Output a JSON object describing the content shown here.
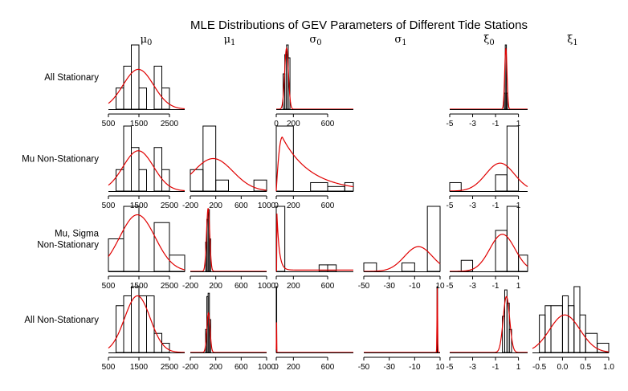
{
  "chart_data": {
    "type": "histogram-grid",
    "title": "MLE Distributions of GEV Parameters of Different Tide Stations",
    "columns": [
      {
        "name": "μ",
        "sub": "0"
      },
      {
        "name": "μ",
        "sub": "1"
      },
      {
        "name": "σ",
        "sub": "0"
      },
      {
        "name": "σ",
        "sub": "1"
      },
      {
        "name": "ξ",
        "sub": "0"
      },
      {
        "name": "ξ",
        "sub": "1"
      }
    ],
    "rows": [
      {
        "label_lines": [
          "All Stationary"
        ]
      },
      {
        "label_lines": [
          "Mu Non-Stationary"
        ]
      },
      {
        "label_lines": [
          "Mu, Sigma",
          "Non-Stationary"
        ]
      },
      {
        "label_lines": [
          "All Non-Stationary"
        ]
      }
    ],
    "axes": {
      "0": {
        "xlim": [
          500,
          3000
        ],
        "ticks": [
          500,
          1500,
          2500
        ],
        "tick_labels": [
          "500",
          "1500",
          "2500"
        ]
      },
      "1": {
        "xlim": [
          -200,
          1000
        ],
        "ticks": [
          -200,
          200,
          600,
          1000
        ],
        "tick_labels": [
          "-200",
          "200",
          "600",
          "1000"
        ]
      },
      "2": {
        "xlim": [
          0,
          900
        ],
        "ticks": [
          0,
          200,
          600
        ],
        "tick_labels": [
          "0",
          "200",
          "600"
        ]
      },
      "2r0": {
        "xlim": [
          0,
          900
        ],
        "ticks": [
          0,
          200,
          600
        ],
        "tick_labels": [
          "0",
          "200",
          "600"
        ]
      },
      "3": {
        "xlim": [
          -50,
          10
        ],
        "ticks": [
          -50,
          -30,
          -10,
          10
        ],
        "tick_labels": [
          "-50",
          "-30",
          "-10",
          "10"
        ]
      },
      "4": {
        "xlim": [
          -5,
          1.8
        ],
        "ticks": [
          -5,
          -3,
          -1,
          1
        ],
        "tick_labels": [
          "-5",
          "-3",
          "-1",
          "1"
        ]
      },
      "5": {
        "xlim": [
          -0.65,
          1.0
        ],
        "ticks": [
          -0.5,
          0.0,
          0.5,
          1.0
        ],
        "tick_labels": [
          "-0.5",
          "0.0",
          "0.5",
          "1.0"
        ]
      }
    },
    "panels": [
      {
        "row": 0,
        "col": 0,
        "ymax": 1.0,
        "bins": [
          [
            750,
            1000,
            0.33
          ],
          [
            1000,
            1250,
            0.67
          ],
          [
            1250,
            1500,
            1.0
          ],
          [
            1500,
            1750,
            0.33
          ],
          [
            1750,
            2000,
            0.0
          ],
          [
            2000,
            2250,
            0.67
          ],
          [
            2250,
            2500,
            0.33
          ]
        ],
        "density": {
          "kind": "normal",
          "mean": 1480,
          "sd": 500,
          "peak": 0.62
        }
      },
      {
        "row": 0,
        "col": 2,
        "ymax": 1.0,
        "bins": [
          [
            80,
            100,
            0.55
          ],
          [
            100,
            120,
            0.85
          ],
          [
            120,
            140,
            1.0
          ],
          [
            140,
            160,
            0.8
          ]
        ],
        "density": {
          "kind": "normal",
          "mean": 120,
          "sd": 22,
          "peak": 0.95
        }
      },
      {
        "row": 0,
        "col": 4,
        "ymax": 1.0,
        "bins": [
          [
            -0.25,
            -0.15,
            0.25
          ],
          [
            -0.15,
            -0.05,
            1.0
          ],
          [
            -0.05,
            0.05,
            0.25
          ]
        ],
        "density": {
          "kind": "normal",
          "mean": -0.1,
          "sd": 0.1,
          "peak": 0.95
        }
      },
      {
        "row": 1,
        "col": 0,
        "ymax": 1.0,
        "bins": [
          [
            750,
            1000,
            0.33
          ],
          [
            1000,
            1250,
            1.0
          ],
          [
            1250,
            1500,
            0.67
          ],
          [
            1500,
            1750,
            0.33
          ],
          [
            1750,
            2000,
            0.0
          ],
          [
            2000,
            2250,
            0.67
          ],
          [
            2250,
            2500,
            0.33
          ]
        ],
        "density": {
          "kind": "normal",
          "mean": 1480,
          "sd": 500,
          "peak": 0.62
        }
      },
      {
        "row": 1,
        "col": 1,
        "ymax": 1.0,
        "bins": [
          [
            -200,
            0,
            0.33
          ],
          [
            0,
            200,
            1.0
          ],
          [
            200,
            400,
            0.17
          ],
          [
            400,
            600,
            0.0
          ],
          [
            600,
            800,
            0.0
          ],
          [
            800,
            1000,
            0.17
          ]
        ],
        "density": {
          "kind": "normal",
          "mean": 160,
          "sd": 310,
          "peak": 0.5
        }
      },
      {
        "row": 1,
        "col": 2,
        "ymax": 1.0,
        "bins": [
          [
            0,
            200,
            1.0
          ],
          [
            200,
            400,
            0.0
          ],
          [
            400,
            600,
            0.13
          ],
          [
            600,
            800,
            0.07
          ],
          [
            800,
            900,
            0.13
          ]
        ],
        "density": {
          "kind": "skew",
          "mode": 70,
          "peak": 0.83,
          "rise": 50,
          "decay": 330
        }
      },
      {
        "row": 1,
        "col": 4,
        "ymax": 1.0,
        "bins": [
          [
            -5,
            -4,
            0.13
          ],
          [
            -4,
            -3,
            0.0
          ],
          [
            -3,
            -2,
            0.0
          ],
          [
            -2,
            -1,
            0.0
          ],
          [
            -1,
            0,
            0.25
          ],
          [
            0,
            1,
            1.0
          ]
        ],
        "density": {
          "kind": "normal",
          "mean": -0.6,
          "sd": 1.25,
          "peak": 0.43
        }
      },
      {
        "row": 2,
        "col": 0,
        "ymax": 1.0,
        "bins": [
          [
            500,
            1000,
            0.5
          ],
          [
            1000,
            1500,
            1.0
          ],
          [
            1500,
            2000,
            0.0
          ],
          [
            2000,
            2500,
            0.75
          ],
          [
            2500,
            3000,
            0.25
          ]
        ],
        "density": {
          "kind": "normal",
          "mean": 1450,
          "sd": 580,
          "peak": 0.87
        }
      },
      {
        "row": 2,
        "col": 1,
        "ymax": 1.0,
        "bins": [
          [
            40,
            60,
            0.45
          ],
          [
            60,
            80,
            0.8
          ],
          [
            80,
            100,
            0.95
          ],
          [
            100,
            120,
            0.5
          ]
        ],
        "density": {
          "kind": "normal",
          "mean": 80,
          "sd": 25,
          "peak": 0.97
        }
      },
      {
        "row": 2,
        "col": 2,
        "ymax": 1.0,
        "bins": [
          [
            0,
            100,
            1.0
          ],
          [
            100,
            500,
            0.0
          ],
          [
            500,
            600,
            0.1
          ],
          [
            600,
            700,
            0.1
          ]
        ],
        "density": {
          "kind": "decay",
          "start": 5,
          "peak": 0.95,
          "scale": 28
        }
      },
      {
        "row": 2,
        "col": 3,
        "ymax": 1.0,
        "bins": [
          [
            -50,
            -40,
            0.13
          ],
          [
            -40,
            -30,
            0.0
          ],
          [
            -30,
            -20,
            0.0
          ],
          [
            -20,
            -10,
            0.13
          ],
          [
            -10,
            0,
            0.0
          ],
          [
            0,
            10,
            1.0
          ]
        ],
        "density": {
          "kind": "normal",
          "mean": -7,
          "sd": 11,
          "peak": 0.38
        }
      },
      {
        "row": 2,
        "col": 4,
        "ymax": 1.0,
        "bins": [
          [
            -4,
            -3,
            0.17
          ],
          [
            -3,
            -2,
            0.0
          ],
          [
            -2,
            -1,
            0.0
          ],
          [
            -1,
            0,
            0.63
          ],
          [
            0,
            1,
            1.0
          ],
          [
            1,
            1.8,
            0.25
          ]
        ],
        "density": {
          "kind": "normal",
          "mean": -0.4,
          "sd": 1.1,
          "peak": 0.57
        }
      },
      {
        "row": 3,
        "col": 0,
        "ymax": 1.0,
        "bins": [
          [
            750,
            1000,
            0.71
          ],
          [
            1000,
            1250,
            0.86
          ],
          [
            1250,
            1500,
            1.0
          ],
          [
            1500,
            1750,
            0.86
          ],
          [
            1750,
            2000,
            0.86
          ],
          [
            2000,
            2250,
            0.29
          ],
          [
            2250,
            2500,
            0.14
          ]
        ],
        "density": {
          "kind": "normal",
          "mean": 1450,
          "sd": 420,
          "peak": 0.86
        }
      },
      {
        "row": 3,
        "col": 1,
        "ymax": 1.0,
        "bins": [
          [
            40,
            60,
            0.35
          ],
          [
            60,
            80,
            0.85
          ],
          [
            80,
            100,
            0.9
          ],
          [
            100,
            120,
            0.5
          ]
        ],
        "density": {
          "kind": "normal",
          "mean": 85,
          "sd": 25,
          "peak": 0.6
        }
      },
      {
        "row": 3,
        "col": 2,
        "ymax": 1.0,
        "bins": [
          [
            0,
            5,
            1.0
          ]
        ],
        "density": {
          "kind": "spike",
          "at": 2.5,
          "peak": 1.0,
          "width": 4
        }
      },
      {
        "row": 3,
        "col": 3,
        "ymax": 1.0,
        "bins": [
          [
            7.6,
            8.0,
            1.0
          ]
        ],
        "density": {
          "kind": "spike",
          "at": 7.8,
          "peak": 1.0,
          "width": 0.9
        }
      },
      {
        "row": 3,
        "col": 4,
        "ymax": 1.0,
        "bins": [
          [
            -0.4,
            -0.2,
            0.55
          ],
          [
            -0.2,
            0.0,
            0.95
          ],
          [
            0.0,
            0.2,
            0.75
          ],
          [
            0.2,
            0.4,
            0.35
          ]
        ],
        "density": {
          "kind": "normal",
          "mean": -0.05,
          "sd": 0.28,
          "peak": 0.85
        }
      },
      {
        "row": 3,
        "col": 5,
        "ymax": 1.0,
        "bins": [
          [
            -0.5,
            -0.375,
            0.57
          ],
          [
            -0.375,
            -0.25,
            0.71
          ],
          [
            -0.25,
            0.0,
            0.71
          ],
          [
            0.0,
            0.125,
            0.86
          ],
          [
            0.125,
            0.25,
            0.71
          ],
          [
            0.25,
            0.375,
            1.0
          ],
          [
            0.375,
            0.5,
            0.57
          ],
          [
            0.5,
            0.75,
            0.29
          ],
          [
            0.75,
            1.0,
            0.14
          ]
        ],
        "density": {
          "kind": "normal",
          "mean": 0.05,
          "sd": 0.33,
          "peak": 0.57
        }
      }
    ]
  }
}
